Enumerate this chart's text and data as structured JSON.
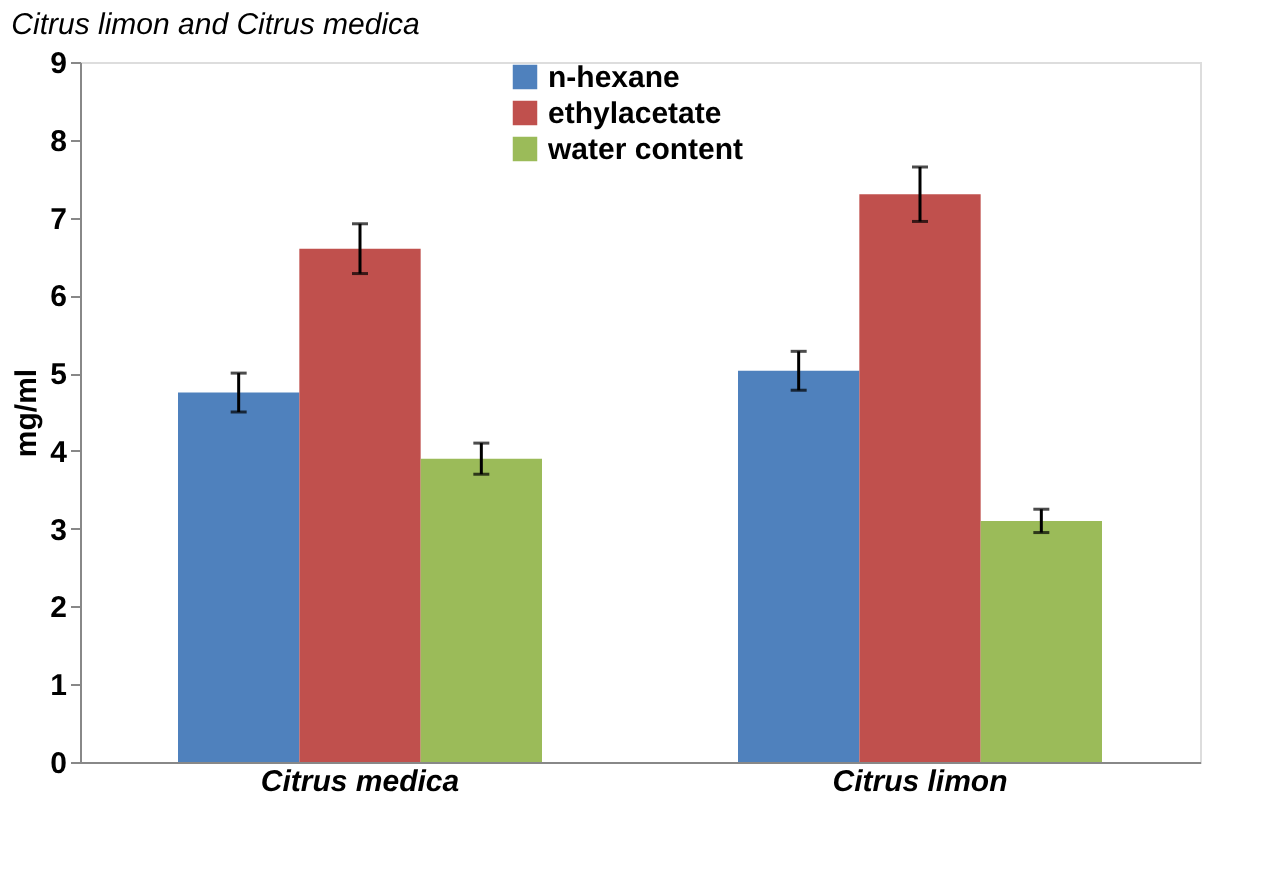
{
  "chart_data": {
    "type": "bar",
    "title": "Citrus limon and Citrus medica",
    "ylabel": "mg/ml",
    "categories": [
      "Citrus medica",
      "Citrus limon"
    ],
    "series": [
      {
        "name": "n-hexane",
        "color": "#4f81bd",
        "values": [
          4.75,
          5.03
        ],
        "errors": [
          0.25,
          0.25
        ]
      },
      {
        "name": "ethylacetate",
        "color": "#c0504d",
        "values": [
          6.6,
          7.3
        ],
        "errors": [
          0.32,
          0.35
        ]
      },
      {
        "name": "water content",
        "color": "#9bbb59",
        "values": [
          3.9,
          3.1
        ],
        "errors": [
          0.2,
          0.15
        ]
      }
    ],
    "ylim": [
      0,
      9
    ],
    "yticks": [
      0,
      1,
      2,
      3,
      4,
      5,
      6,
      7,
      8,
      9
    ],
    "grid": false,
    "legend": "top"
  }
}
